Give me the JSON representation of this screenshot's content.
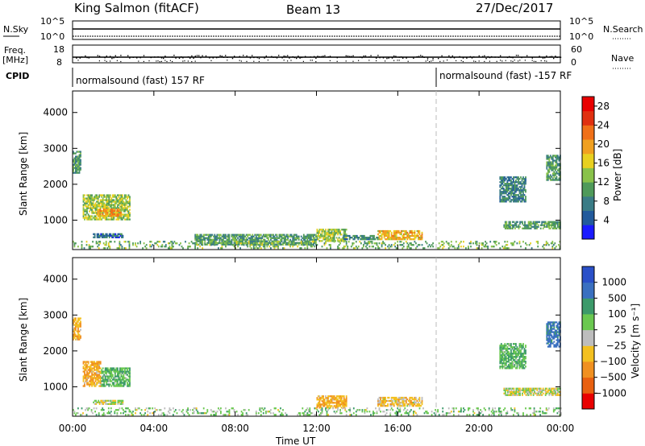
{
  "header": {
    "station": "King Salmon (fitACF)",
    "beam": "Beam 13",
    "date": "27/Dec/2017"
  },
  "strip_labels": {
    "nsky": "N.Sky",
    "nsky_top": "10^5",
    "nsky_bottom": "10^0",
    "nsearch": "N.Search",
    "nsearch_top": "10^5",
    "nsearch_bottom": "10^0",
    "freq": "Freq.",
    "freq_unit": "[MHz]",
    "freq_top": "18",
    "freq_bottom": "8",
    "nave": "Nave",
    "nave_top": "60",
    "nave_bottom": "0",
    "cpid": "CPID"
  },
  "cpid_modes": [
    {
      "label": "normalsound (fast) 157 RF",
      "start_hour": 0
    },
    {
      "label": "normalsound (fast) -157 RF",
      "start_hour": 18
    }
  ],
  "colors": {
    "power": [
      "#1a1aff",
      "#225a9c",
      "#3a7c86",
      "#4f9a5a",
      "#89c24a",
      "#e8d020",
      "#f0a020",
      "#f07018",
      "#e03010",
      "#e80000"
    ],
    "velocity": [
      "#2a50c8",
      "#3a70c0",
      "#3c9a6a",
      "#6ac850",
      "#bdbdbd",
      "#f3c020",
      "#f09020",
      "#e86010",
      "#e80000"
    ]
  },
  "chart_data": [
    {
      "type": "heatmap",
      "name": "power",
      "xlabel": "",
      "ylabel": "Slant Range [km]",
      "xlim": [
        0,
        24
      ],
      "ylim": [
        180,
        4600
      ],
      "y_ticks": [
        "1000",
        "2000",
        "3000",
        "4000"
      ],
      "colorbar_label": "Power [dB]",
      "colorbar_ticks": [
        "4",
        "8",
        "12",
        "16",
        "20",
        "24",
        "28"
      ],
      "colorbar_range": [
        0,
        30
      ],
      "regions": [
        {
          "t0": 0.0,
          "t1": 0.4,
          "r0": 2300,
          "r1": 2900,
          "value": 10
        },
        {
          "t0": 0.5,
          "t1": 2.8,
          "r0": 1000,
          "r1": 1700,
          "value": 14
        },
        {
          "t0": 1.2,
          "t1": 2.4,
          "r0": 1100,
          "r1": 1300,
          "value": 20
        },
        {
          "t0": 1.0,
          "t1": 2.5,
          "r0": 500,
          "r1": 600,
          "value": 6
        },
        {
          "t0": 12.0,
          "t1": 13.5,
          "r0": 400,
          "r1": 750,
          "value": 14
        },
        {
          "t0": 15.0,
          "t1": 17.2,
          "r0": 450,
          "r1": 700,
          "value": 18
        },
        {
          "t0": 13.3,
          "t1": 15.0,
          "r0": 450,
          "r1": 550,
          "value": 8
        },
        {
          "t0": 21.2,
          "t1": 24.0,
          "r0": 750,
          "r1": 950,
          "value": 10
        },
        {
          "t0": 21.0,
          "t1": 22.3,
          "r0": 1500,
          "r1": 2200,
          "value": 8
        },
        {
          "t0": 23.3,
          "t1": 24.0,
          "r0": 2100,
          "r1": 2800,
          "value": 10
        },
        {
          "t0": 6.0,
          "t1": 12.0,
          "r0": 300,
          "r1": 600,
          "value": 10
        },
        {
          "t0": 0.0,
          "t1": 24.0,
          "r0": 200,
          "r1": 400,
          "value": 12
        }
      ]
    },
    {
      "type": "heatmap",
      "name": "velocity",
      "xlabel": "Time UT",
      "ylabel": "Slant Range [km]",
      "xlim": [
        0,
        24
      ],
      "ylim": [
        180,
        4600
      ],
      "x_ticks": [
        "00:00",
        "04:00",
        "08:00",
        "12:00",
        "16:00",
        "20:00",
        "00:00"
      ],
      "y_ticks": [
        "1000",
        "2000",
        "3000",
        "4000"
      ],
      "colorbar_label": "Velocity [m s⁻¹]",
      "colorbar_ticks": [
        "1000",
        "500",
        "100",
        "25",
        "−25",
        "−100",
        "−500",
        "−1000"
      ],
      "regions": [
        {
          "t0": 0.0,
          "t1": 0.4,
          "r0": 2300,
          "r1": 2900,
          "value": -100
        },
        {
          "t0": 0.5,
          "t1": 1.4,
          "r0": 1000,
          "r1": 1700,
          "value": -100
        },
        {
          "t0": 1.4,
          "t1": 2.8,
          "r0": 1000,
          "r1": 1500,
          "value": 100
        },
        {
          "t0": 1.0,
          "t1": 2.5,
          "r0": 500,
          "r1": 600,
          "value": 0
        },
        {
          "t0": 12.0,
          "t1": 13.5,
          "r0": 400,
          "r1": 750,
          "value": -100
        },
        {
          "t0": 15.0,
          "t1": 17.2,
          "r0": 450,
          "r1": 700,
          "value": -50
        },
        {
          "t0": 21.2,
          "t1": 24.0,
          "r0": 750,
          "r1": 950,
          "value": 0
        },
        {
          "t0": 21.0,
          "t1": 22.3,
          "r0": 1500,
          "r1": 2200,
          "value": 100
        },
        {
          "t0": 23.3,
          "t1": 24.0,
          "r0": 2100,
          "r1": 2800,
          "value": 300
        },
        {
          "t0": 0.0,
          "t1": 24.0,
          "r0": 200,
          "r1": 400,
          "value": 50
        }
      ]
    }
  ]
}
